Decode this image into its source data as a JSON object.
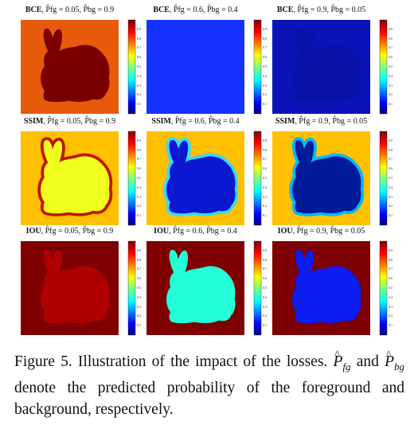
{
  "figure": {
    "rows": [
      {
        "loss": "BCE",
        "panels": [
          {
            "title_params": ", P̂fg = 0.05, P̂bg = 0.9",
            "background": "#e85a0c",
            "foreground": "#7a0000",
            "halo": null
          },
          {
            "title_params": ", P̂fg = 0.6, P̂bg = 0.4",
            "background": "#1632ff",
            "foreground": "#1632ff",
            "halo": null
          },
          {
            "title_params": ", P̂fg = 0.9, P̂bg = 0.05",
            "background": "#0a14b8",
            "foreground": "#0a12a8",
            "halo": null
          }
        ]
      },
      {
        "loss": "SSIM",
        "panels": [
          {
            "title_params": ", P̂fg = 0.05, P̂bg = 0.9",
            "background": "#ffc000",
            "foreground": "#f0ff1e",
            "halo": "#c21400"
          },
          {
            "title_params": ", P̂fg = 0.6, P̂bg = 0.4",
            "background": "#ffc000",
            "foreground": "#0a18d0",
            "halo": "#38d8ff"
          },
          {
            "title_params": ", P̂fg = 0.9, P̂bg = 0.05",
            "background": "#ffc000",
            "foreground": "#001a9a",
            "halo": "#00b8ff"
          }
        ]
      },
      {
        "loss": "IOU",
        "panels": [
          {
            "title_params": ", P̂fg = 0.05, P̂bg = 0.9",
            "background": "#7e0000",
            "foreground": "#b00000",
            "halo": null
          },
          {
            "title_params": ", P̂fg = 0.6, P̂bg = 0.4",
            "background": "#7e0000",
            "foreground": "#22ffd8",
            "halo": null
          },
          {
            "title_params": ", P̂fg = 0.9, P̂bg = 0.05",
            "background": "#7e0000",
            "foreground": "#0a1cf0",
            "halo": null
          }
        ]
      }
    ],
    "colorbar_ticks": [
      "0.9",
      "0.8",
      "0.7",
      "0.6",
      "0.5",
      "0.4",
      "0.3",
      "0.2",
      "0.1"
    ]
  },
  "caption": {
    "label": "Figure 5.",
    "text1": " Illustration of the impact of the losses. ",
    "sym1_base": "P",
    "sym1_sub": "fg",
    "text2": " and ",
    "sym2_base": "P",
    "sym2_sub": "bg",
    "text3": " denote the predicted probability of the foreground and background, respectively."
  }
}
